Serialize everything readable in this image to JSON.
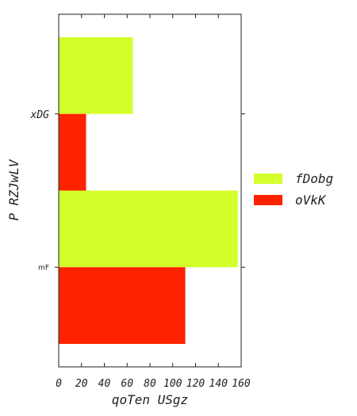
{
  "chart_data": {
    "type": "bar",
    "orientation": "horizontal",
    "categories": [
      "xDG",
      "mF"
    ],
    "series": [
      {
        "name": "fDobg",
        "color": "#d4ff2a",
        "values": [
          65,
          157
        ]
      },
      {
        "name": "oVkK",
        "color": "#ff2200",
        "values": [
          24,
          111
        ]
      }
    ],
    "xlabel": "qoTen USgz",
    "ylabel": "P RZJwLV",
    "xlim": [
      0,
      160
    ],
    "xticks": [
      "0",
      "20",
      "40",
      "60",
      "80",
      "100",
      "120",
      "140",
      "160"
    ],
    "grid": false,
    "legend_position": "right"
  }
}
